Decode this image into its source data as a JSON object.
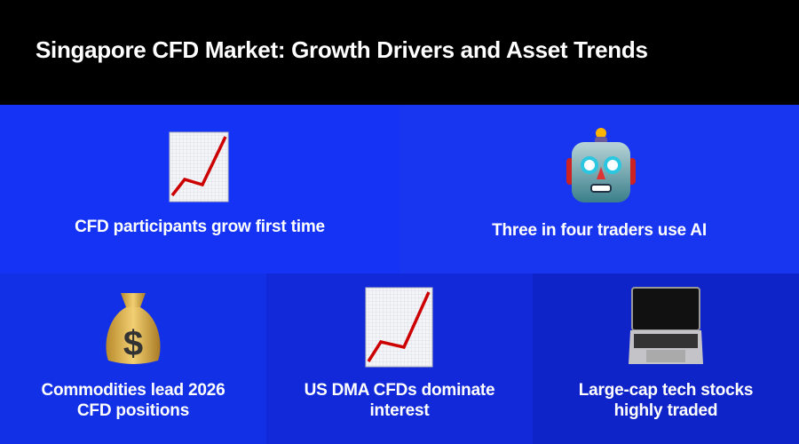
{
  "header": {
    "title": "Singapore CFD Market: Growth Drivers and Asset Trends"
  },
  "cards": [
    {
      "label": "CFD participants grow first time",
      "icon": "chart-increasing-icon",
      "bg": "#1433f5"
    },
    {
      "label": "Three in four traders use AI",
      "icon": "robot-icon",
      "bg": "#1835f0"
    },
    {
      "label": "Commodities lead 2026 CFD positions",
      "icon": "money-bag-icon",
      "bg": "#1230e6"
    },
    {
      "label": "US DMA CFDs dominate interest",
      "icon": "chart-increasing-icon",
      "bg": "#1129d8"
    },
    {
      "label": "Large-cap tech stocks highly traded",
      "icon": "laptop-icon",
      "bg": "#0f24c8"
    }
  ]
}
